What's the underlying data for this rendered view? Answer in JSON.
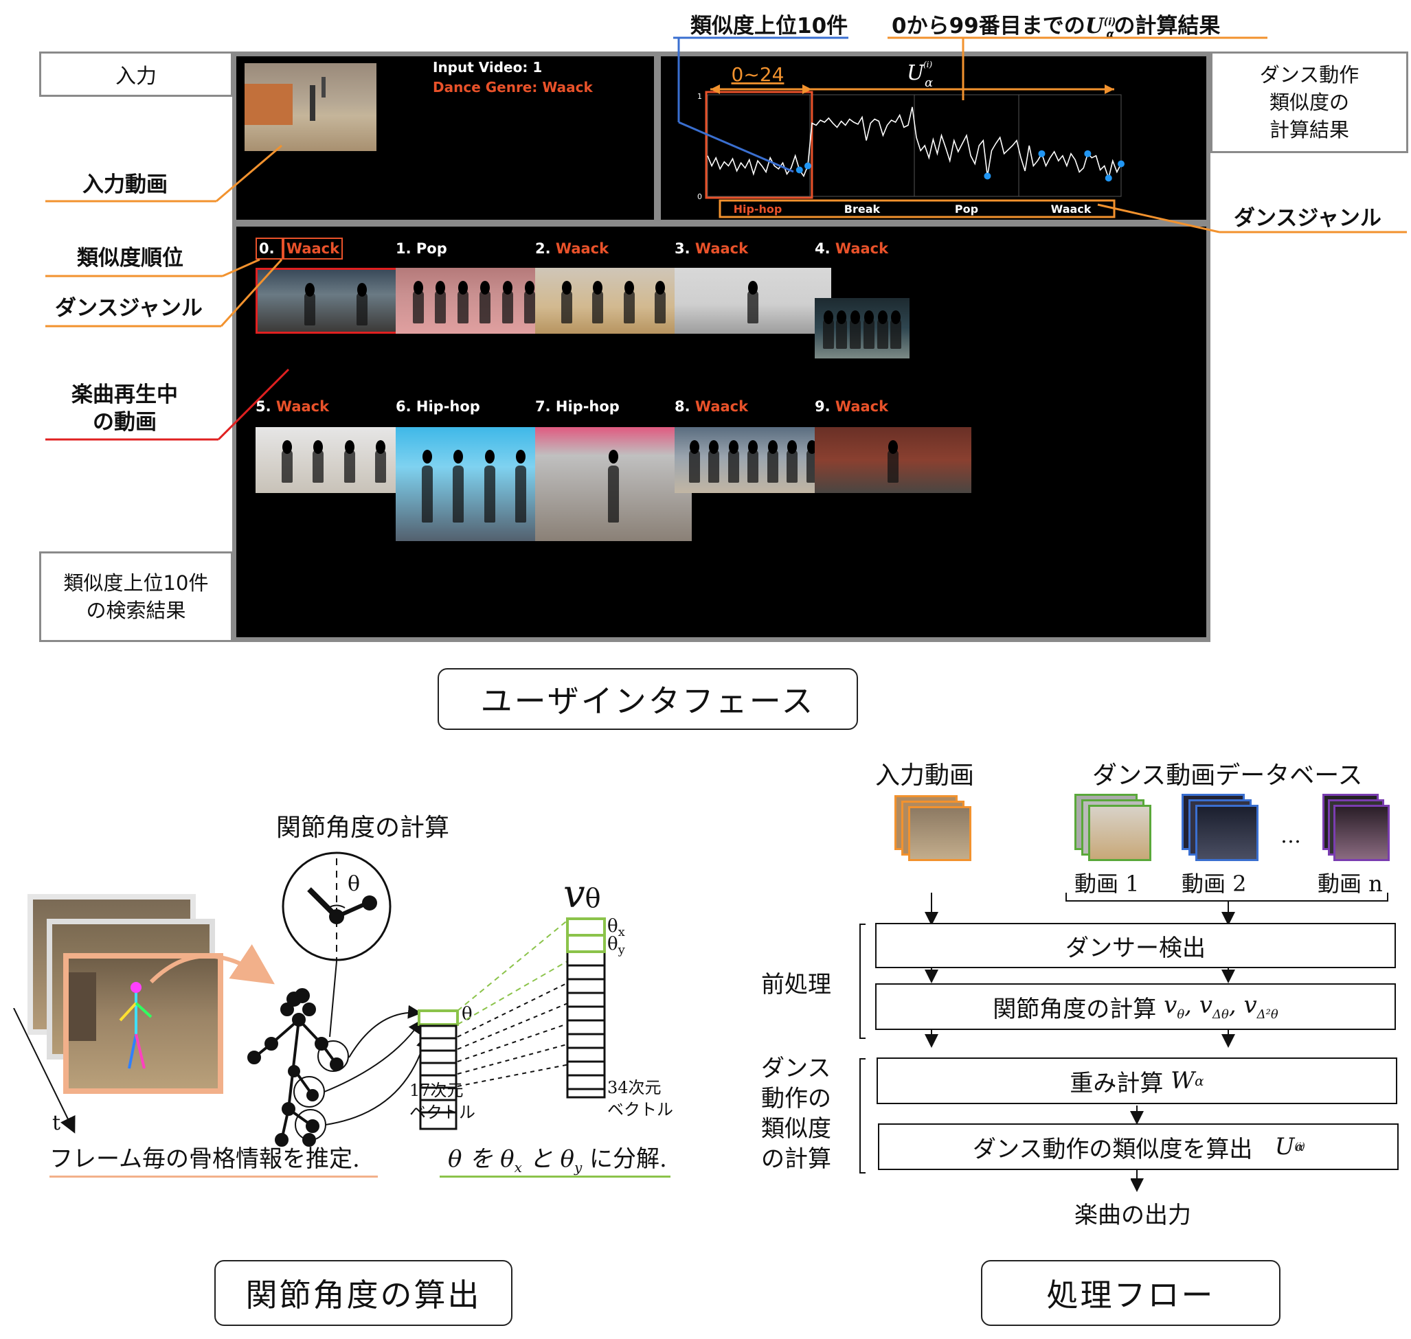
{
  "ui": {
    "input_label": "入力",
    "result_label": "ダンス動作\n類似度の\n計算結果",
    "search_label": "類似度上位10件\nの検索結果",
    "input_video_text": "Input Video: 1",
    "dance_genre_text": "Dance Genre: Waack",
    "chart_title": "U",
    "chart_range_label": "0~24",
    "chart_y_top": "1",
    "chart_y_bottom": "0",
    "results": [
      {
        "rank": "0.",
        "genre": "Waack",
        "accent": true
      },
      {
        "rank": "1.",
        "genre": "Pop",
        "accent": false
      },
      {
        "rank": "2.",
        "genre": "Waack",
        "accent": true
      },
      {
        "rank": "3.",
        "genre": "Waack",
        "accent": true
      },
      {
        "rank": "4.",
        "genre": "Waack",
        "accent": true
      },
      {
        "rank": "5.",
        "genre": "Waack",
        "accent": true
      },
      {
        "rank": "6.",
        "genre": "Hip-hop",
        "accent": false
      },
      {
        "rank": "7.",
        "genre": "Hip-hop",
        "accent": false
      },
      {
        "rank": "8.",
        "genre": "Waack",
        "accent": true
      },
      {
        "rank": "9.",
        "genre": "Waack",
        "accent": true
      }
    ]
  },
  "annotations": {
    "top10": "類似度上位10件",
    "range_calc": "0から99番目までの",
    "range_calc_suffix": "の計算結果",
    "input_video": "入力動画",
    "rank": "類似度順位",
    "dance_genre_left": "ダンスジャンル",
    "now_playing": "楽曲再生中\nの動画",
    "dance_genre_right": "ダンスジャンル"
  },
  "chart_data": {
    "type": "line",
    "title": "U",
    "categories_ranges": [
      {
        "name": "Hip-hop",
        "from": 0,
        "to": 24
      },
      {
        "name": "Break",
        "from": 25,
        "to": 49
      },
      {
        "name": "Pop",
        "from": 50,
        "to": 74
      },
      {
        "name": "Waack",
        "from": 75,
        "to": 99
      }
    ],
    "highlight_range": [
      0,
      24
    ],
    "ylim": [
      0,
      1
    ],
    "values": [
      0.4,
      0.3,
      0.38,
      0.27,
      0.34,
      0.3,
      0.37,
      0.25,
      0.33,
      0.28,
      0.36,
      0.22,
      0.35,
      0.3,
      0.24,
      0.38,
      0.3,
      0.27,
      0.33,
      0.22,
      0.28,
      0.4,
      0.26,
      0.2,
      0.3,
      0.72,
      0.7,
      0.75,
      0.73,
      0.77,
      0.72,
      0.68,
      0.74,
      0.7,
      0.76,
      0.73,
      0.71,
      0.78,
      0.55,
      0.72,
      0.76,
      0.74,
      0.6,
      0.7,
      0.75,
      0.73,
      0.8,
      0.68,
      0.7,
      0.88,
      0.58,
      0.45,
      0.5,
      0.38,
      0.56,
      0.42,
      0.6,
      0.48,
      0.35,
      0.55,
      0.44,
      0.52,
      0.6,
      0.4,
      0.32,
      0.5,
      0.55,
      0.2,
      0.45,
      0.52,
      0.58,
      0.42,
      0.46,
      0.5,
      0.55,
      0.38,
      0.25,
      0.5,
      0.3,
      0.35,
      0.42,
      0.3,
      0.38,
      0.44,
      0.35,
      0.4,
      0.3,
      0.42,
      0.36,
      0.24,
      0.28,
      0.42,
      0.38,
      0.4,
      0.26,
      0.3,
      0.18,
      0.35,
      0.24,
      0.32
    ],
    "marked_points": [
      22,
      24,
      67,
      80,
      91,
      96,
      99
    ]
  },
  "joint": {
    "title": "関節角度の計算",
    "theta": "θ",
    "v_label": "v",
    "v_sub": "θ",
    "theta_small": "θ",
    "theta_x": "θ",
    "theta_x_sub": "x",
    "theta_y": "θ",
    "theta_y_sub": "y",
    "dim17": "17次元",
    "dim34": "34次元",
    "vector": "ベクトル",
    "t_label": "t",
    "skeleton_caption": "フレーム毎の骨格情報を推定.",
    "decomp_pre": "θ を θ",
    "decomp_x": "x",
    "decomp_mid": " と θ",
    "decomp_y": "y",
    "decomp_post": " に分解.",
    "caption": "関節角度の算出"
  },
  "flow": {
    "input_video": "入力動画",
    "database": "ダンス動画データベース",
    "video1": "動画 1",
    "video2": "動画 2",
    "videon": "動画 n",
    "ellipsis": "…",
    "preprocess": "前処理",
    "similarity_group": "ダンス\n動作の\n類似度\nの計算",
    "step1": "ダンサー検出",
    "step2": "関節角度の計算",
    "step2_math": "v",
    "step3": "重み計算",
    "step3_math": "W",
    "step3_sub": "α",
    "step4": "ダンス動作の類似度を算出",
    "step4_math": "U",
    "output": "楽曲の出力",
    "caption": "処理フロー"
  },
  "captions": {
    "ui": "ユーザインタフェース"
  },
  "colors": {
    "accent": "#e9522a",
    "orange": "#f2922e",
    "red": "#e02020",
    "blue": "#3a6fd0",
    "green": "#8bc34a",
    "chart_point": "#2196f3"
  }
}
